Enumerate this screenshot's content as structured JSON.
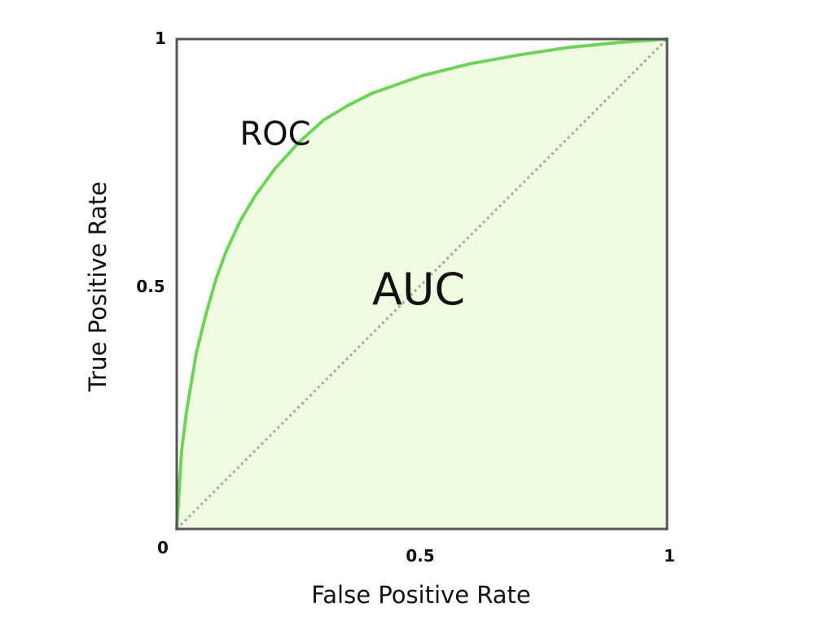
{
  "chart_data": {
    "type": "area",
    "title": "",
    "xlabel": "False Positive Rate",
    "ylabel": "True Positive Rate",
    "xlim": [
      0,
      1
    ],
    "ylim": [
      0,
      1
    ],
    "x_ticks": [
      {
        "value": 0,
        "label": "0"
      },
      {
        "value": 0.5,
        "label": "0.5"
      },
      {
        "value": 1,
        "label": "1"
      }
    ],
    "y_ticks": [
      {
        "value": 0.5,
        "label": "0.5"
      },
      {
        "value": 1,
        "label": "1"
      }
    ],
    "grid": false,
    "series": [
      {
        "name": "ROC",
        "color": "#6fd35a",
        "fill": "#eefbe0",
        "x": [
          0,
          0.01,
          0.02,
          0.04,
          0.06,
          0.08,
          0.1,
          0.13,
          0.16,
          0.2,
          0.25,
          0.3,
          0.35,
          0.4,
          0.5,
          0.6,
          0.7,
          0.8,
          0.9,
          1
        ],
        "y": [
          0,
          0.16,
          0.24,
          0.36,
          0.44,
          0.51,
          0.565,
          0.63,
          0.68,
          0.735,
          0.79,
          0.835,
          0.865,
          0.89,
          0.925,
          0.95,
          0.968,
          0.983,
          0.993,
          1
        ]
      },
      {
        "name": "",
        "style": "dotted",
        "color": "#a8a8a8",
        "x": [
          0,
          1
        ],
        "y": [
          0,
          1
        ]
      }
    ],
    "annotations": [
      {
        "text": "ROC",
        "x": 0.18,
        "y": 0.81
      },
      {
        "text": "AUC",
        "x": 0.49,
        "y": 0.49
      }
    ],
    "frame_color": "#555555"
  }
}
